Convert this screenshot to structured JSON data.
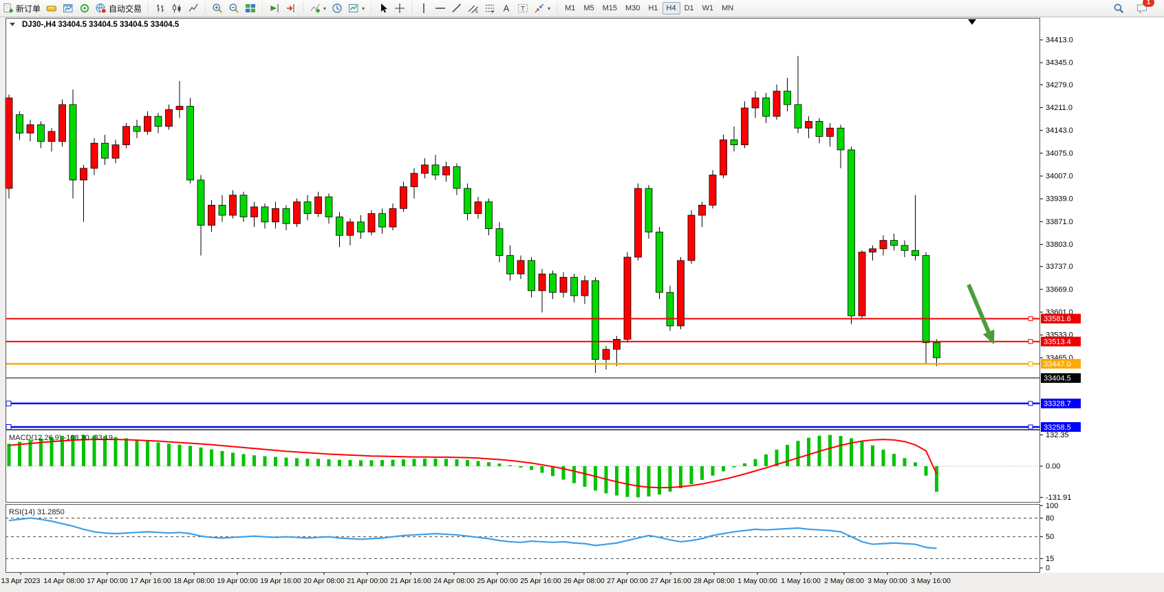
{
  "toolbar": {
    "buttons": [
      {
        "name": "new-order-button",
        "icon": "new-order-icon",
        "label": "新订单"
      },
      {
        "name": "market-depth-button",
        "icon": "gold-bar-icon",
        "label": ""
      },
      {
        "name": "chart-window-button",
        "icon": "chart-window-icon",
        "label": ""
      },
      {
        "name": "signals-button",
        "icon": "signal-icon",
        "label": ""
      },
      {
        "name": "auto-trading-button",
        "icon": "globe-icon",
        "label": "自动交易"
      },
      {
        "name": "sep1",
        "icon": "sep",
        "label": ""
      },
      {
        "name": "bar-chart-button",
        "icon": "bar-chart-icon",
        "label": ""
      },
      {
        "name": "candlestick-chart-button",
        "icon": "candlestick-icon",
        "label": ""
      },
      {
        "name": "line-chart-button",
        "icon": "line-chart-icon",
        "label": ""
      },
      {
        "name": "sep2",
        "icon": "sep",
        "label": ""
      },
      {
        "name": "zoom-in-button",
        "icon": "zoom-in-icon",
        "label": ""
      },
      {
        "name": "zoom-out-button",
        "icon": "zoom-out-icon",
        "label": ""
      },
      {
        "name": "tile-windows-button",
        "icon": "tile-windows-icon",
        "label": ""
      },
      {
        "name": "sep3",
        "icon": "sep",
        "label": ""
      },
      {
        "name": "auto-scroll-button",
        "icon": "auto-scroll-icon",
        "label": ""
      },
      {
        "name": "chart-shift-button",
        "icon": "chart-shift-icon",
        "label": ""
      },
      {
        "name": "sep4",
        "icon": "sep",
        "label": ""
      },
      {
        "name": "indicators-button",
        "icon": "indicators-icon",
        "label": "",
        "caret": true
      },
      {
        "name": "periods-button",
        "icon": "periods-icon",
        "label": ""
      },
      {
        "name": "templates-button",
        "icon": "templates-icon",
        "label": "",
        "caret": true
      },
      {
        "name": "sep5",
        "icon": "sep",
        "label": ""
      },
      {
        "name": "cursor-button",
        "icon": "cursor-icon",
        "label": ""
      },
      {
        "name": "crosshair-button",
        "icon": "crosshair-icon",
        "label": ""
      },
      {
        "name": "sep6",
        "icon": "sep",
        "label": ""
      },
      {
        "name": "vertical-line-button",
        "icon": "vertical-line-icon",
        "label": ""
      },
      {
        "name": "horizontal-line-button",
        "icon": "horizontal-line-icon",
        "label": ""
      },
      {
        "name": "trendline-button",
        "icon": "trendline-icon",
        "label": ""
      },
      {
        "name": "equidistant-channel-button",
        "icon": "equidistant-channel-icon",
        "label": ""
      },
      {
        "name": "fibonacci-button",
        "icon": "fibonacci-icon",
        "label": ""
      },
      {
        "name": "text-button",
        "icon": "text-icon",
        "label": ""
      },
      {
        "name": "text-label-button",
        "icon": "text-label-icon",
        "label": ""
      },
      {
        "name": "arrows-button",
        "icon": "arrows-icon",
        "label": "",
        "caret": true
      },
      {
        "name": "sep7",
        "icon": "sep",
        "label": ""
      }
    ],
    "timeframes": [
      "M1",
      "M5",
      "M15",
      "M30",
      "H1",
      "H4",
      "D1",
      "W1",
      "MN"
    ],
    "active_timeframe": "H4",
    "notification_badge": "1"
  },
  "chart": {
    "title": "DJ30-,H4 33404.5 33404.5 33404.5 33404.5"
  },
  "chart_data": {
    "type": "candlestick",
    "symbol": "DJ30-",
    "timeframe": "H4",
    "note": "CN color convention: red = up candle, green = down candle",
    "colors": {
      "up_candle": "#ff0000",
      "down_candle": "#00d800",
      "wick": "#000000",
      "macd_histogram": "#00c400",
      "macd_signal": "#ff0000",
      "rsi_line": "#3f9fe8",
      "red": "#ee0000",
      "orange": "#ffa800",
      "blue": "#0000ff",
      "current_price": "#000000",
      "arrow": "#4d9c3b"
    },
    "price_axis": {
      "ticks": [
        "34413.0",
        "34345.0",
        "34279.0",
        "34211.0",
        "34143.0",
        "34075.0",
        "34007.0",
        "33939.0",
        "33871.0",
        "33803.0",
        "33737.0",
        "33669.0",
        "33601.0",
        "33533.0",
        "33465.0"
      ]
    },
    "time_axis": {
      "labels": [
        "13 Apr 2023",
        "14 Apr 08:00",
        "17 Apr 00:00",
        "17 Apr 16:00",
        "18 Apr 08:00",
        "19 Apr 00:00",
        "19 Apr 16:00",
        "20 Apr 08:00",
        "21 Apr 00:00",
        "21 Apr 16:00",
        "24 Apr 08:00",
        "25 Apr 00:00",
        "25 Apr 16:00",
        "26 Apr 08:00",
        "27 Apr 00:00",
        "27 Apr 16:00",
        "28 Apr 08:00",
        "1 May 00:00",
        "1 May 16:00",
        "2 May 08:00",
        "3 May 00:00",
        "3 May 16:00"
      ]
    },
    "levels": [
      {
        "label": "33581.6",
        "value": 33581.6,
        "color_key": "red"
      },
      {
        "label": "33513.4",
        "value": 33513.4,
        "color_key": "red"
      },
      {
        "label": "33447.0",
        "value": 33447.0,
        "color_key": "orange"
      },
      {
        "label": "33328.7",
        "value": 33328.7,
        "color_key": "blue"
      },
      {
        "label": "33258.5",
        "value": 33258.5,
        "color_key": "blue"
      }
    ],
    "current_price": {
      "label": "33404.5",
      "value": 33404.5
    },
    "candles_ohlc": [
      [
        33970,
        34250,
        33940,
        34240
      ],
      [
        34190,
        34200,
        34115,
        34135
      ],
      [
        34135,
        34175,
        34110,
        34160
      ],
      [
        34160,
        34170,
        34090,
        34110
      ],
      [
        34110,
        34150,
        34080,
        34140
      ],
      [
        34110,
        34235,
        34095,
        34220
      ],
      [
        34220,
        34265,
        33940,
        33995
      ],
      [
        33995,
        34040,
        33870,
        34030
      ],
      [
        34030,
        34120,
        34010,
        34105
      ],
      [
        34105,
        34130,
        34040,
        34060
      ],
      [
        34060,
        34115,
        34045,
        34100
      ],
      [
        34100,
        34165,
        34090,
        34155
      ],
      [
        34155,
        34175,
        34120,
        34140
      ],
      [
        34140,
        34200,
        34130,
        34185
      ],
      [
        34185,
        34195,
        34135,
        34155
      ],
      [
        34155,
        34220,
        34145,
        34205
      ],
      [
        34205,
        34290,
        34180,
        34215
      ],
      [
        34215,
        34240,
        33985,
        33995
      ],
      [
        33995,
        34010,
        33770,
        33860
      ],
      [
        33860,
        33935,
        33840,
        33920
      ],
      [
        33920,
        33950,
        33870,
        33890
      ],
      [
        33890,
        33965,
        33880,
        33950
      ],
      [
        33950,
        33960,
        33870,
        33885
      ],
      [
        33885,
        33930,
        33855,
        33915
      ],
      [
        33915,
        33925,
        33850,
        33870
      ],
      [
        33870,
        33930,
        33850,
        33910
      ],
      [
        33910,
        33920,
        33845,
        33865
      ],
      [
        33865,
        33940,
        33855,
        33930
      ],
      [
        33930,
        33950,
        33875,
        33895
      ],
      [
        33895,
        33960,
        33885,
        33945
      ],
      [
        33945,
        33955,
        33865,
        33885
      ],
      [
        33885,
        33900,
        33795,
        33830
      ],
      [
        33830,
        33880,
        33800,
        33870
      ],
      [
        33870,
        33890,
        33820,
        33840
      ],
      [
        33840,
        33905,
        33830,
        33895
      ],
      [
        33895,
        33910,
        33835,
        33855
      ],
      [
        33855,
        33925,
        33845,
        33910
      ],
      [
        33910,
        33990,
        33900,
        33975
      ],
      [
        33975,
        34030,
        33940,
        34015
      ],
      [
        34015,
        34060,
        34000,
        34040
      ],
      [
        34040,
        34070,
        33995,
        34010
      ],
      [
        34010,
        34050,
        33990,
        34035
      ],
      [
        34035,
        34045,
        33950,
        33970
      ],
      [
        33970,
        33985,
        33875,
        33895
      ],
      [
        33895,
        33945,
        33880,
        33930
      ],
      [
        33930,
        33940,
        33830,
        33850
      ],
      [
        33850,
        33870,
        33750,
        33770
      ],
      [
        33770,
        33800,
        33695,
        33715
      ],
      [
        33715,
        33770,
        33700,
        33755
      ],
      [
        33755,
        33765,
        33645,
        33665
      ],
      [
        33665,
        33730,
        33600,
        33715
      ],
      [
        33715,
        33725,
        33640,
        33660
      ],
      [
        33660,
        33720,
        33645,
        33705
      ],
      [
        33705,
        33715,
        33630,
        33650
      ],
      [
        33650,
        33710,
        33625,
        33695
      ],
      [
        33695,
        33705,
        33420,
        33460
      ],
      [
        33460,
        33500,
        33430,
        33490
      ],
      [
        33490,
        33530,
        33440,
        33520
      ],
      [
        33520,
        33780,
        33510,
        33765
      ],
      [
        33765,
        33985,
        33755,
        33970
      ],
      [
        33970,
        33980,
        33820,
        33840
      ],
      [
        33840,
        33855,
        33640,
        33660
      ],
      [
        33660,
        33680,
        33545,
        33560
      ],
      [
        33560,
        33765,
        33550,
        33755
      ],
      [
        33755,
        33905,
        33745,
        33890
      ],
      [
        33890,
        33930,
        33855,
        33920
      ],
      [
        33920,
        34025,
        33910,
        34010
      ],
      [
        34010,
        34130,
        34000,
        34115
      ],
      [
        34115,
        34155,
        34080,
        34100
      ],
      [
        34100,
        34230,
        34090,
        34210
      ],
      [
        34210,
        34260,
        34180,
        34240
      ],
      [
        34240,
        34255,
        34165,
        34185
      ],
      [
        34185,
        34280,
        34175,
        34260
      ],
      [
        34260,
        34300,
        34200,
        34220
      ],
      [
        34220,
        34365,
        34135,
        34150
      ],
      [
        34150,
        34185,
        34120,
        34170
      ],
      [
        34170,
        34180,
        34105,
        34125
      ],
      [
        34125,
        34165,
        34095,
        34150
      ],
      [
        34150,
        34160,
        34030,
        34085
      ],
      [
        34085,
        34095,
        33565,
        33590
      ],
      [
        33590,
        33785,
        33580,
        33780
      ],
      [
        33780,
        33800,
        33755,
        33790
      ],
      [
        33790,
        33830,
        33770,
        33815
      ],
      [
        33815,
        33835,
        33785,
        33800
      ],
      [
        33800,
        33815,
        33765,
        33785
      ],
      [
        33785,
        33950,
        33755,
        33770
      ],
      [
        33770,
        33780,
        33445,
        33510
      ],
      [
        33510,
        33520,
        33440,
        33465
      ]
    ],
    "macd": {
      "label": "MACD(12,26,9) -108.30 -33.19",
      "parameters": "12,26,9",
      "value": -108.3,
      "signal_value": -33.19,
      "axis_ticks": [
        "132.35",
        "0.00",
        "-131.91"
      ],
      "histogram": [
        95,
        103,
        110,
        117,
        123,
        128,
        131,
        132.4,
        130,
        127,
        123,
        118,
        112,
        106,
        100,
        95,
        91,
        86,
        79,
        71,
        64,
        57,
        51,
        46,
        42,
        39,
        36,
        34,
        32,
        31,
        29,
        27,
        26,
        25,
        25,
        26,
        27,
        29,
        31,
        32,
        32,
        31,
        29,
        26,
        22,
        17,
        11,
        4,
        -6,
        -16,
        -28,
        -42,
        -57,
        -72,
        -87,
        -103,
        -115,
        -124,
        -130,
        -131.9,
        -128,
        -120,
        -108,
        -93,
        -76,
        -58,
        -40,
        -22,
        -5,
        12,
        30,
        50,
        70,
        90,
        107,
        120,
        129,
        132,
        128,
        118,
        104,
        88,
        70,
        52,
        34,
        16,
        -40,
        -108.3
      ],
      "signal": [
        88,
        92,
        96,
        100,
        104,
        107,
        110,
        112,
        113,
        113.5,
        113,
        112,
        110,
        108,
        106,
        103,
        100,
        97,
        94,
        91,
        87,
        83,
        79,
        75,
        71,
        67,
        63,
        60,
        57,
        54,
        51,
        49,
        47,
        45,
        43,
        42,
        41,
        40,
        39,
        39,
        38,
        38,
        37,
        36,
        34,
        31,
        28,
        24,
        19,
        13,
        6,
        -2,
        -11,
        -21,
        -32,
        -43,
        -55,
        -66,
        -76,
        -84,
        -89,
        -91,
        -90,
        -87,
        -82,
        -75,
        -66,
        -56,
        -45,
        -33,
        -20,
        -7,
        7,
        21,
        35,
        49,
        63,
        76,
        88,
        98,
        106,
        111,
        113,
        111,
        104,
        90,
        65,
        -33.2
      ]
    },
    "rsi": {
      "label": "RSI(14) 31.2850",
      "period": 14,
      "value": 31.285,
      "axis_ticks": [
        "100",
        "80",
        "50",
        "15",
        "0"
      ],
      "levels": [
        80,
        50,
        15
      ],
      "values": [
        76,
        78,
        80,
        78,
        75,
        71,
        67,
        62,
        58,
        56,
        55,
        56,
        57,
        58,
        57,
        56,
        57,
        55,
        51,
        49,
        48,
        49,
        50,
        51,
        50,
        49,
        50,
        49,
        48,
        49,
        50,
        48,
        47,
        46,
        47,
        48,
        50,
        52,
        53,
        54,
        55,
        54,
        53,
        51,
        49,
        47,
        44,
        42,
        41,
        43,
        42,
        41,
        42,
        40,
        39,
        36,
        38,
        40,
        44,
        48,
        52,
        49,
        45,
        42,
        44,
        47,
        52,
        55,
        58,
        60,
        62,
        61,
        62,
        63,
        64,
        62,
        61,
        60,
        58,
        50,
        42,
        38,
        39,
        40,
        39,
        38,
        33,
        31.3
      ]
    },
    "annotation": {
      "type": "arrow-down-right",
      "color": "#4d9c3b"
    }
  }
}
